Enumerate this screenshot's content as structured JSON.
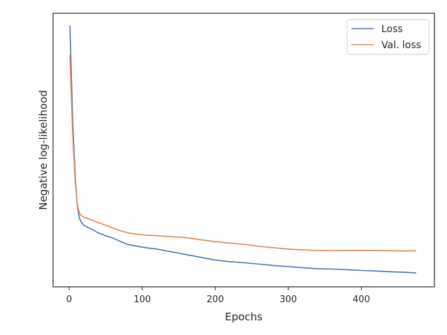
{
  "chart_data": {
    "type": "line",
    "title": "",
    "xlabel": "Epochs",
    "ylabel": "Negative log-likelihood",
    "xlim": [
      -22,
      500
    ],
    "ylim": [
      0.0,
      1.0
    ],
    "x_ticks": [
      0,
      100,
      200,
      300,
      400
    ],
    "y_ticks": [],
    "grid": false,
    "legend_position": "top-right",
    "series": [
      {
        "name": "Loss",
        "color": "#4c72b0",
        "x": [
          1,
          3,
          5,
          8,
          11,
          14,
          17,
          20,
          25,
          30,
          40,
          50,
          60,
          70,
          80,
          90,
          100,
          120,
          140,
          160,
          180,
          200,
          220,
          240,
          260,
          280,
          300,
          320,
          340,
          360,
          380,
          400,
          420,
          440,
          460,
          475
        ],
        "values": [
          0.955,
          0.78,
          0.6,
          0.42,
          0.3,
          0.25,
          0.235,
          0.225,
          0.218,
          0.212,
          0.197,
          0.187,
          0.178,
          0.166,
          0.155,
          0.15,
          0.145,
          0.138,
          0.128,
          0.118,
          0.108,
          0.098,
          0.092,
          0.088,
          0.083,
          0.078,
          0.074,
          0.07,
          0.066,
          0.065,
          0.063,
          0.06,
          0.058,
          0.055,
          0.053,
          0.051
        ]
      },
      {
        "name": "Val. loss",
        "color": "#dd8452",
        "x": [
          1,
          3,
          5,
          8,
          11,
          14,
          17,
          20,
          25,
          30,
          40,
          50,
          60,
          70,
          80,
          90,
          100,
          120,
          140,
          160,
          180,
          200,
          220,
          240,
          260,
          280,
          300,
          320,
          340,
          360,
          380,
          400,
          420,
          440,
          460,
          475
        ],
        "values": [
          0.85,
          0.7,
          0.55,
          0.4,
          0.3,
          0.27,
          0.26,
          0.255,
          0.25,
          0.245,
          0.235,
          0.225,
          0.215,
          0.205,
          0.198,
          0.193,
          0.19,
          0.187,
          0.183,
          0.18,
          0.172,
          0.165,
          0.16,
          0.155,
          0.148,
          0.143,
          0.138,
          0.135,
          0.133,
          0.132,
          0.133,
          0.133,
          0.133,
          0.132,
          0.131,
          0.132
        ]
      }
    ]
  }
}
